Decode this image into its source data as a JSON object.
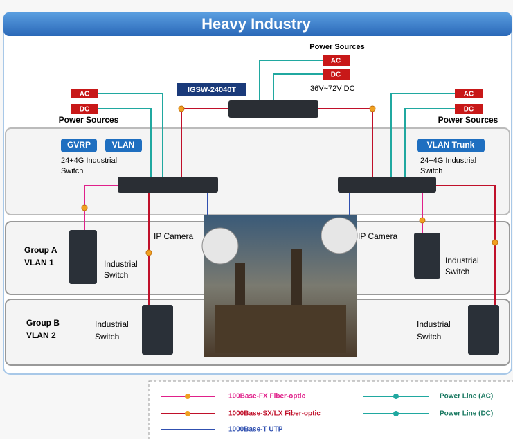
{
  "header": {
    "title": "Heavy Industry"
  },
  "core": {
    "power_label": "Power Sources",
    "ac": "AC",
    "dc": "DC",
    "voltage": "36V~72V DC",
    "model": "IGSW-24040T"
  },
  "left_switch": {
    "power_label": "Power Sources",
    "ac": "AC",
    "dc": "DC",
    "tags": [
      "GVRP",
      "VLAN"
    ],
    "label": [
      "24+4G Industrial",
      "Switch"
    ]
  },
  "right_switch": {
    "power_label": "Power Sources",
    "ac": "AC",
    "dc": "DC",
    "tags": [
      "VLAN Trunk"
    ],
    "label": [
      "24+4G Industrial",
      "Switch"
    ]
  },
  "cameras": [
    "IP Camera",
    "IP Camera"
  ],
  "group_a": {
    "name": [
      "Group A",
      "VLAN 1"
    ],
    "left_switch_label": [
      "Industrial",
      "Switch"
    ],
    "right_switch_label": [
      "Industrial",
      "Switch"
    ]
  },
  "group_b": {
    "name": [
      "Group B",
      "VLAN 2"
    ],
    "left_switch_label": [
      "Industrial",
      "Switch"
    ],
    "right_switch_label": [
      "Industrial",
      "Switch"
    ]
  },
  "legend": {
    "items": [
      "100Base-FX Fiber-optic",
      "1000Base-SX/LX Fiber-optic",
      "1000Base-T UTP",
      "Power Line (AC)",
      "Power Line (DC)"
    ]
  }
}
